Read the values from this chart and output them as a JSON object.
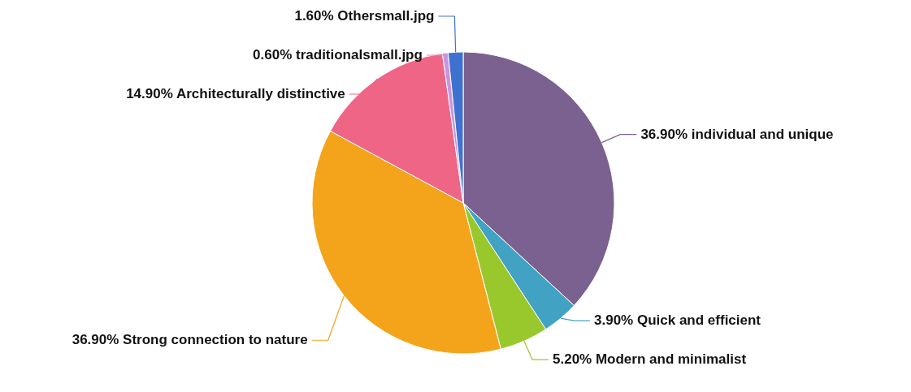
{
  "chart_data": {
    "type": "pie",
    "categories": [
      "individual and unique",
      "Quick and efficient",
      "Modern and minimalist",
      "Strong connection to nature",
      "Architecturally distinctive",
      "traditionalsmall.jpg",
      "Othersmall.jpg"
    ],
    "values": [
      36.9,
      3.9,
      5.2,
      36.9,
      14.9,
      0.6,
      1.6
    ],
    "value_labels": [
      "36.90%",
      "3.90%",
      "5.20%",
      "36.90%",
      "14.90%",
      "0.60%",
      "1.60%"
    ],
    "colors": [
      "#7b6190",
      "#41a2c4",
      "#99c82d",
      "#f4a41b",
      "#ef6586",
      "#c796e0",
      "#3f72cf"
    ],
    "legend": false
  }
}
